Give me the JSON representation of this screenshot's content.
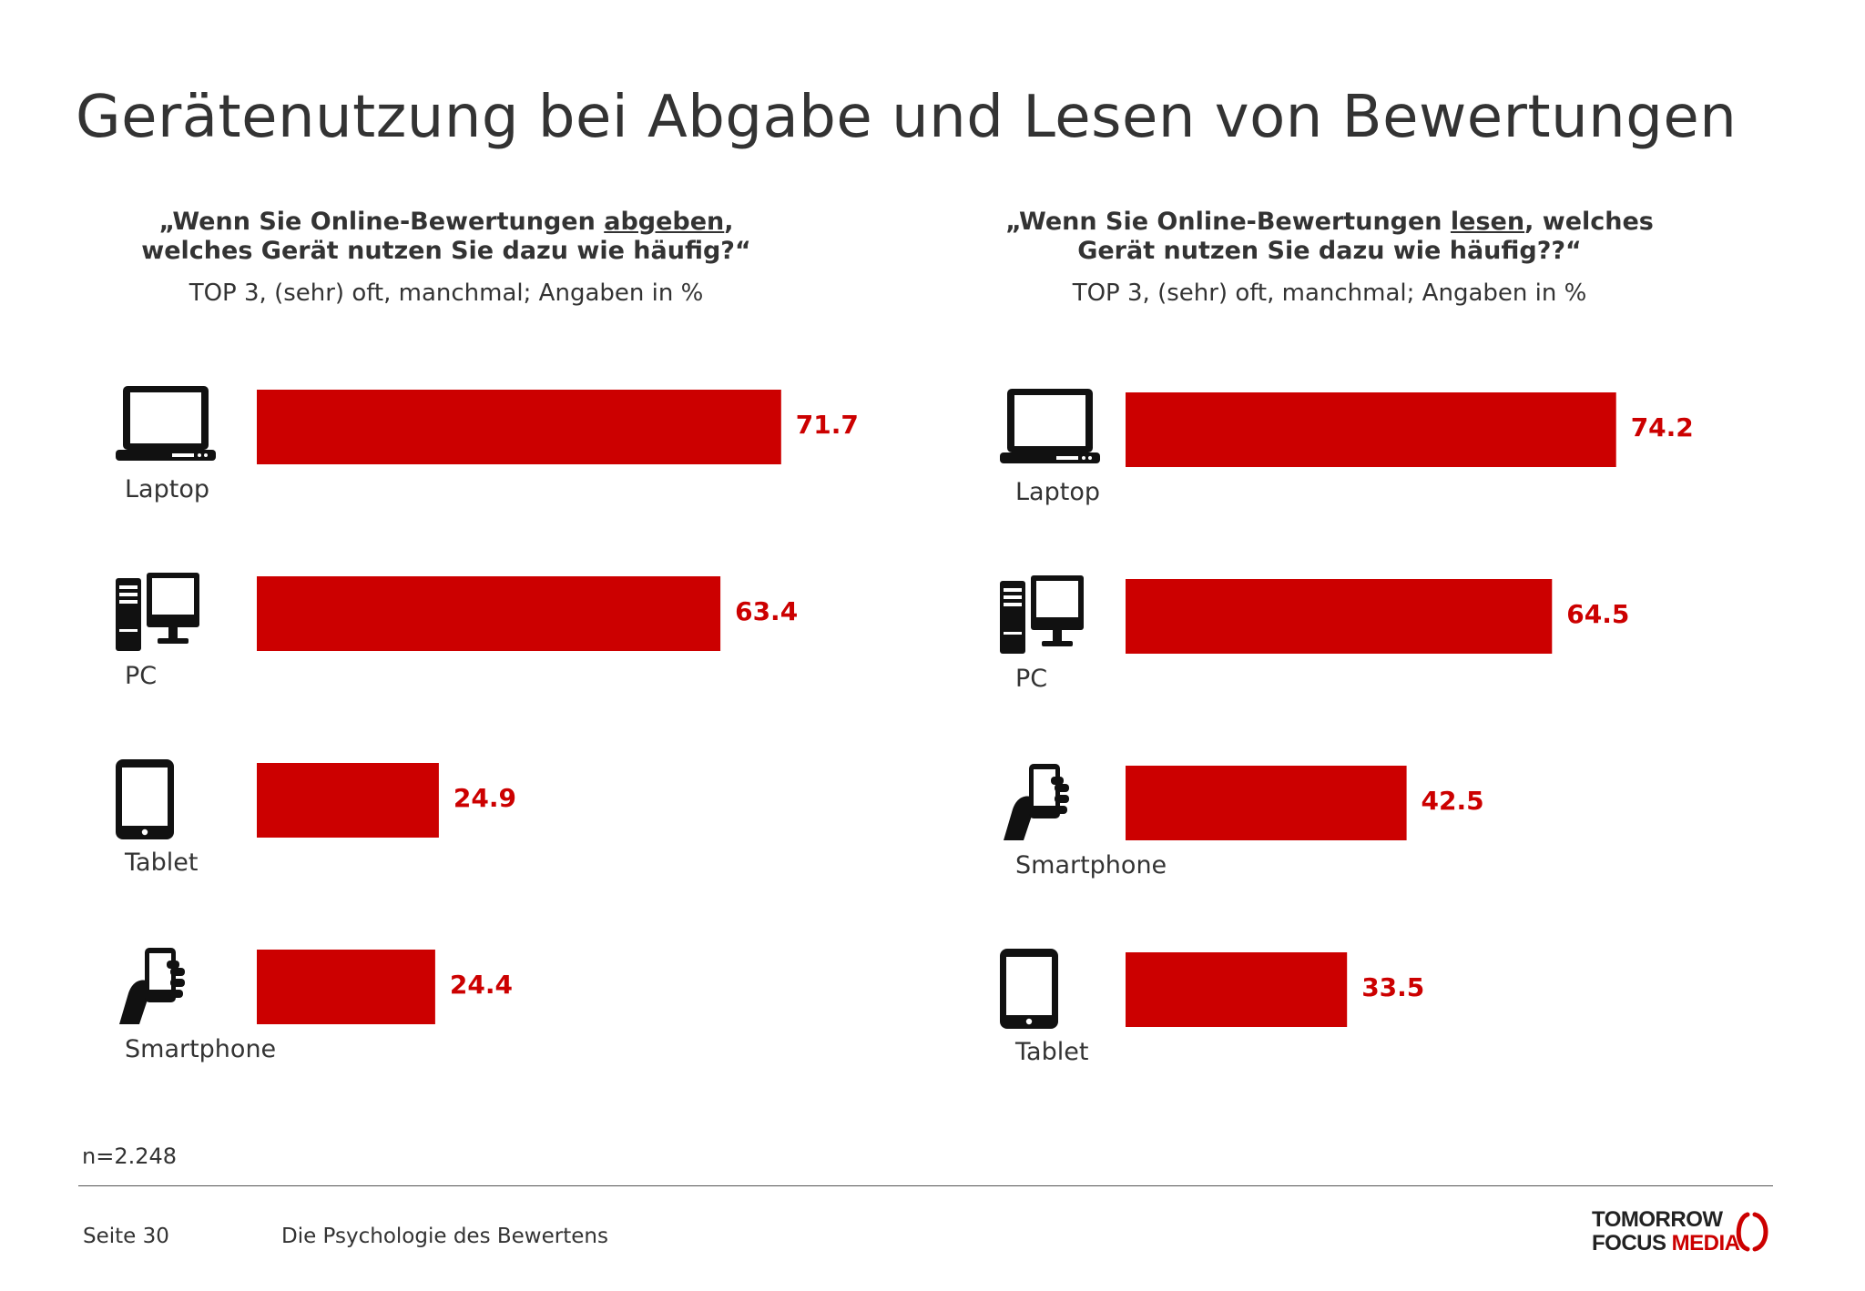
{
  "page_title": "Gerätenutzung bei Abgabe und Lesen von Bewertungen",
  "left": {
    "question_line1_pre": "„Wenn Sie Online-Bewertungen ",
    "question_line1_ul": "abgeben",
    "question_line1_post": ",",
    "question_line2": "welches Gerät nutzen Sie dazu wie häufig?“",
    "subtitle": "TOP 3, (sehr) oft, manchmal; Angaben in %"
  },
  "right": {
    "question_line1_pre": "„Wenn Sie Online-Bewertungen ",
    "question_line1_ul": "lesen",
    "question_line1_post": ", welches",
    "question_line2": "Gerät nutzen Sie dazu wie häufig??“",
    "subtitle": "TOP 3, (sehr) oft, manchmal; Angaben in %"
  },
  "chart_data": [
    {
      "type": "bar",
      "orientation": "horizontal",
      "categories": [
        "Laptop",
        "PC",
        "Tablet",
        "Smartphone"
      ],
      "icons": [
        "laptop-icon",
        "pc-icon",
        "tablet-icon",
        "smartphone-icon"
      ],
      "values": [
        71.7,
        63.4,
        24.9,
        24.4
      ],
      "value_labels": [
        "71.7",
        "63.4",
        "24.9",
        "24.4"
      ],
      "xlim": [
        0,
        100
      ],
      "grid": false,
      "legend": "none",
      "bar_color": "#cc0000"
    },
    {
      "type": "bar",
      "orientation": "horizontal",
      "categories": [
        "Laptop",
        "PC",
        "Smartphone",
        "Tablet"
      ],
      "icons": [
        "laptop-icon",
        "pc-icon",
        "smartphone-icon",
        "tablet-icon"
      ],
      "values": [
        74.2,
        64.5,
        42.5,
        33.5
      ],
      "value_labels": [
        "74.2",
        "64.5",
        "42.5",
        "33.5"
      ],
      "xlim": [
        0,
        100
      ],
      "grid": false,
      "legend": "none",
      "bar_color": "#cc0000"
    }
  ],
  "footer": {
    "sample": "n=2.248",
    "page": "Seite 30",
    "doc_title": "Die Psychologie des Bewertens",
    "logo_line1": "TOMORROW",
    "logo_focus": "FOCUS ",
    "logo_media": "MEDIA"
  },
  "colors": {
    "accent": "#cc0000",
    "text": "#333333"
  }
}
